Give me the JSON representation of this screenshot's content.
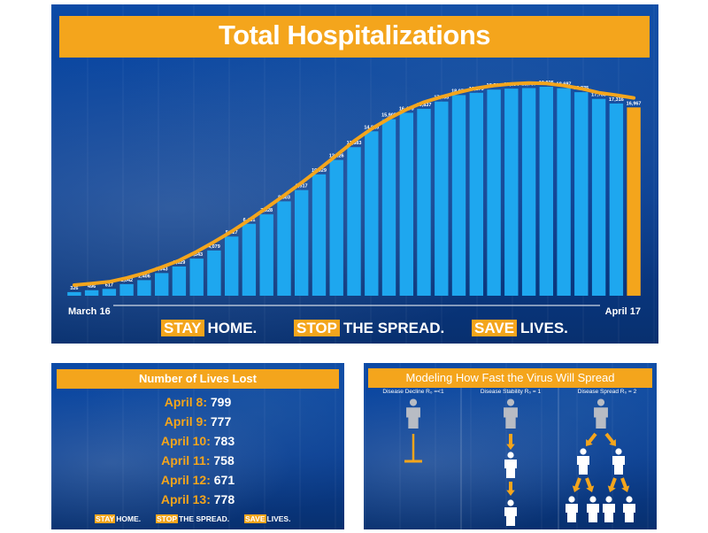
{
  "main_panel": {
    "title": "Total Hospitalizations",
    "start_label": "March 16",
    "end_label": "April 17",
    "slogans": [
      {
        "highlight": "STAY",
        "rest": "HOME."
      },
      {
        "highlight": "STOP",
        "rest": "THE SPREAD."
      },
      {
        "highlight": "SAVE",
        "rest": "LIVES."
      }
    ]
  },
  "chart_data": {
    "type": "bar",
    "title": "Total Hospitalizations",
    "x_start": "March 16",
    "x_end": "April 17",
    "series": [
      {
        "values": [
          326,
          496,
          617,
          1042,
          1406,
          2043,
          2629,
          3343,
          4079,
          5327,
          6481,
          7328,
          8503,
          9517,
          10929,
          12226,
          13383,
          14810,
          15905,
          16479,
          16837,
          17493,
          18079,
          18279,
          18569,
          18654,
          18707,
          18825,
          18697,
          18335,
          17735,
          17316,
          16967
        ],
        "labels": [
          "326",
          "496",
          "617",
          "1,042",
          "1,406",
          "2,043",
          "2,629",
          "3,343",
          "4,079",
          "5,327",
          "6,481",
          "7,328",
          "8,503",
          "9,517",
          "10,929",
          "12,226",
          "13,383",
          "14,810",
          "15,905",
          "16,479",
          "16,837",
          "17,493",
          "18,079",
          "18,279",
          "18,569",
          "18,654",
          "18,707",
          "18,825",
          "18,697",
          "18,335",
          "17,735",
          "17,316",
          "16,967"
        ]
      }
    ],
    "trend_line": true,
    "bar_color": "#1ea7ef",
    "last_bar_color": "#f4a51c",
    "trend_color": "#f4a51c",
    "ylim": [
      0,
      20500
    ]
  },
  "lives_panel": {
    "title": "Number of Lives Lost",
    "rows": [
      {
        "date": "April 8:",
        "value": "799"
      },
      {
        "date": "April 9:",
        "value": "777"
      },
      {
        "date": "April 10:",
        "value": "783"
      },
      {
        "date": "April 11:",
        "value": "758"
      },
      {
        "date": "April 12:",
        "value": "671"
      },
      {
        "date": "April 13:",
        "value": "778"
      }
    ],
    "slogans": [
      {
        "highlight": "STAY",
        "rest": "HOME."
      },
      {
        "highlight": "STOP",
        "rest": "THE SPREAD."
      },
      {
        "highlight": "SAVE",
        "rest": "LIVES."
      }
    ]
  },
  "model_panel": {
    "title": "Modeling How Fast the Virus Will Spread",
    "columns": [
      {
        "label": "Disease Decline R₀ =<1"
      },
      {
        "label": "Disease Stability R₀ = 1"
      },
      {
        "label": "Disease Spread R₀ = 2"
      }
    ]
  },
  "colors": {
    "accent": "#f4a51c",
    "bar": "#1ea7ef",
    "background": "#0b4aa6"
  }
}
